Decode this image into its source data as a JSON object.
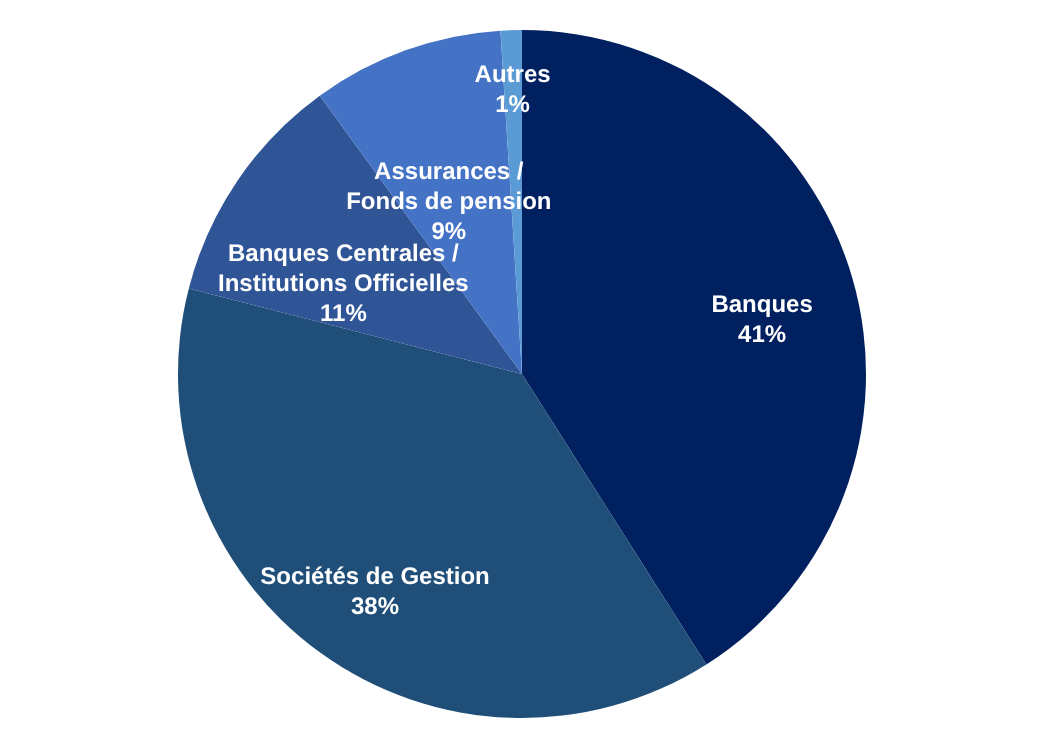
{
  "chart_data": {
    "type": "pie",
    "categories": [
      "Banques",
      "Sociétés de Gestion",
      "Banques Centrales /\nInstitutions Officielles",
      "Assurances /\nFonds de pension",
      "Autres"
    ],
    "values": [
      41,
      38,
      11,
      9,
      1
    ],
    "value_labels": [
      "41%",
      "38%",
      "11%",
      "9%",
      "1%"
    ],
    "colors": [
      "#002060",
      "#1f4e79",
      "#2f5597",
      "#4472c4",
      "#5b9bd5"
    ]
  }
}
